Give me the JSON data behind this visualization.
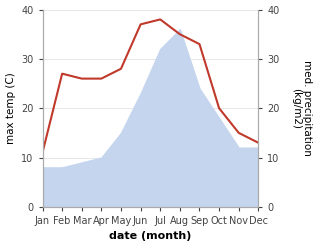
{
  "months": [
    "Jan",
    "Feb",
    "Mar",
    "Apr",
    "May",
    "Jun",
    "Jul",
    "Aug",
    "Sep",
    "Oct",
    "Nov",
    "Dec"
  ],
  "temperature": [
    11,
    27,
    26,
    26,
    28,
    37,
    38,
    35,
    33,
    20,
    15,
    13
  ],
  "precipitation": [
    8,
    8,
    9,
    10,
    15,
    23,
    32,
    36,
    24,
    18,
    12,
    12
  ],
  "temp_color": "#c0392b",
  "precip_color": "#c5d5ee",
  "ylim": [
    0,
    40
  ],
  "yticks": [
    0,
    10,
    20,
    30,
    40
  ],
  "xlabel": "date (month)",
  "ylabel_left": "max temp (C)",
  "ylabel_right": "med. precipitation\n(kg/m2)",
  "xlabel_fontsize": 8,
  "ylabel_fontsize": 7.5,
  "tick_fontsize": 7,
  "line_width": 1.5
}
